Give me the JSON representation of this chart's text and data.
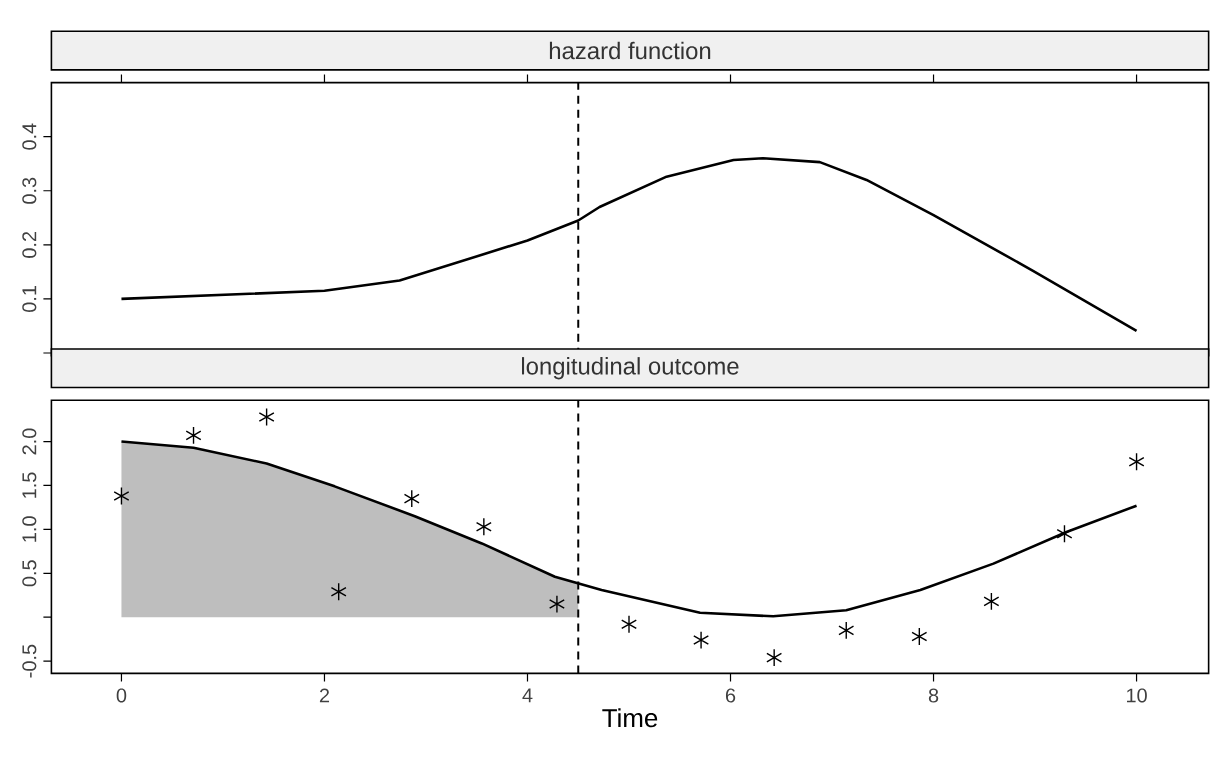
{
  "chart_data": [
    {
      "type": "line",
      "title": "hazard function",
      "x": [
        0,
        2,
        2.74,
        4,
        4.5,
        4.71,
        5.37,
        6.03,
        6.32,
        6.88,
        7.34,
        8.0,
        8.98,
        10
      ],
      "values": [
        0.1,
        0.115,
        0.134,
        0.208,
        0.245,
        0.27,
        0.326,
        0.357,
        0.36,
        0.353,
        0.32,
        0.255,
        0.152,
        0.041
      ],
      "color": "#000000",
      "marker": "none",
      "xlim": [
        -0.69,
        10.71
      ],
      "xticks": [
        0,
        2,
        4,
        6,
        8,
        10
      ],
      "ylim": [
        -0.005,
        0.5
      ],
      "yticks": [
        {
          "value": 0,
          "label": null
        },
        0.1,
        0.2,
        0.3,
        0.4
      ],
      "tick_labels": "y",
      "ref_lines": [
        {
          "axis": "x",
          "value": 4.5,
          "color": "#000000",
          "line_style": "dashed"
        }
      ]
    },
    {
      "type": "line",
      "title": "longitudinal outcome",
      "xlabel": "Time",
      "xlim": [
        -0.69,
        10.71
      ],
      "xticks": [
        0,
        2,
        4,
        6,
        8,
        10
      ],
      "ylim": [
        -0.64,
        2.47
      ],
      "yticks": [
        -0.5,
        {
          "value": 0,
          "label": null
        },
        0.5,
        {
          "value": 1,
          "label": "1.0"
        },
        1.5,
        {
          "value": 2,
          "label": "2.0"
        }
      ],
      "series": [
        {
          "type": "area",
          "color": "#bebebe",
          "x": [
            0,
            0.71,
            1.43,
            2.1,
            2.89,
            3.55,
            4.27,
            4.5
          ],
          "values": [
            2.0,
            1.93,
            1.75,
            1.49,
            1.15,
            0.84,
            0.46,
            0.38
          ]
        },
        {
          "type": "line",
          "color": "#000000",
          "marker": "none",
          "x": [
            0,
            0.71,
            1.43,
            2.1,
            2.89,
            3.55,
            4.27,
            4.73,
            5.7,
            6.42,
            7.14,
            7.87,
            8.59,
            9.31,
            10
          ],
          "values": [
            2.0,
            1.93,
            1.75,
            1.49,
            1.15,
            0.84,
            0.46,
            0.31,
            0.05,
            0.01,
            0.08,
            0.31,
            0.61,
            0.97,
            1.27
          ]
        },
        {
          "type": "scatter",
          "color": "#000000",
          "marker": "cross",
          "x": [
            0,
            0.71,
            1.43,
            2.14,
            2.86,
            3.57,
            4.29,
            5,
            5.71,
            6.43,
            7.14,
            7.86,
            8.57,
            9.29,
            10
          ],
          "values": [
            1.38,
            2.07,
            2.28,
            0.29,
            1.35,
            1.03,
            0.15,
            -0.08,
            -0.26,
            -0.46,
            -0.15,
            -0.22,
            0.18,
            0.95,
            1.77
          ]
        }
      ],
      "ref_lines": [
        {
          "axis": "x",
          "value": 4.5,
          "color": "#000000",
          "line_style": "dashed"
        }
      ]
    }
  ]
}
